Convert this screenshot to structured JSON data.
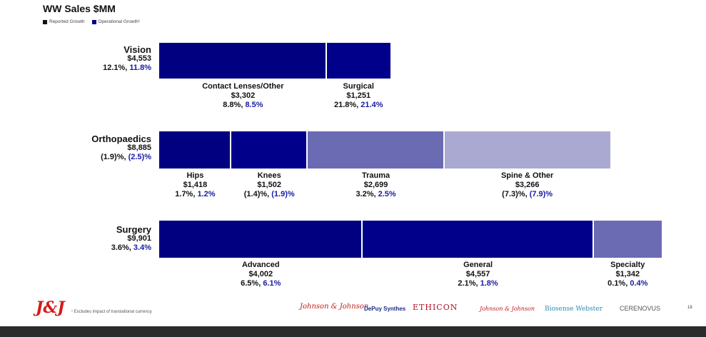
{
  "title": "WW Sales $MM",
  "legend": [
    {
      "label": "Reported Growth",
      "color": "#111111"
    },
    {
      "label": "Operational Growth¹",
      "color": "#00008b"
    }
  ],
  "footnote": "¹ Excludes impact of translational currency",
  "page_number": "18",
  "brands": [
    "Johnson & Johnson",
    "DePuy Synthes",
    "ETHICON",
    "Johnson & Johnson",
    "Biosense Webster",
    "CERENOVUS"
  ],
  "colors": {
    "navy_dark": "#000080",
    "navy": "#00008b",
    "medium": "#6b6bb3",
    "light": "#a9a9d1"
  },
  "chart_data": {
    "type": "bar",
    "title": "WW Sales $MM",
    "segments": [
      {
        "name": "Vision",
        "total": "$4,553",
        "reported": "12.1%,",
        "operational": "11.8%",
        "parts": [
          {
            "name": "Contact Lenses/Other",
            "value": 3302,
            "value_label": "$3,302",
            "reported": "8.8%,",
            "operational": "8.5%",
            "color": "#000080"
          },
          {
            "name": "Surgical",
            "value": 1251,
            "value_label": "$1,251",
            "reported": "21.8%,",
            "operational": "21.4%",
            "color": "#00008b"
          }
        ]
      },
      {
        "name": "Orthopaedics",
        "total": "$8,885",
        "reported": "(1.9)%,",
        "operational": "(2.5)%",
        "parts": [
          {
            "name": "Hips",
            "value": 1418,
            "value_label": "$1,418",
            "reported": "1.7%,",
            "operational": "1.2%",
            "color": "#000080"
          },
          {
            "name": "Knees",
            "value": 1502,
            "value_label": "$1,502",
            "reported": "(1.4)%,",
            "operational": "(1.9)%",
            "color": "#00008b"
          },
          {
            "name": "Trauma",
            "value": 2699,
            "value_label": "$2,699",
            "reported": "3.2%,",
            "operational": "2.5%",
            "color": "#6b6bb3"
          },
          {
            "name": "Spine & Other",
            "value": 3266,
            "value_label": "$3,266",
            "reported": "(7.3)%,",
            "operational": "(7.9)%",
            "color": "#a9a9d1"
          }
        ]
      },
      {
        "name": "Surgery",
        "total": "$9,901",
        "reported": "3.6%,",
        "operational": "3.4%",
        "parts": [
          {
            "name": "Advanced",
            "value": 4002,
            "value_label": "$4,002",
            "reported": "6.5%,",
            "operational": "6.1%",
            "color": "#000080"
          },
          {
            "name": "General",
            "value": 4557,
            "value_label": "$4,557",
            "reported": "2.1%,",
            "operational": "1.8%",
            "color": "#00008b"
          },
          {
            "name": "Specialty",
            "value": 1342,
            "value_label": "$1,342",
            "reported": "0.1%,",
            "operational": "0.4%",
            "color": "#6b6bb3"
          }
        ]
      }
    ]
  }
}
